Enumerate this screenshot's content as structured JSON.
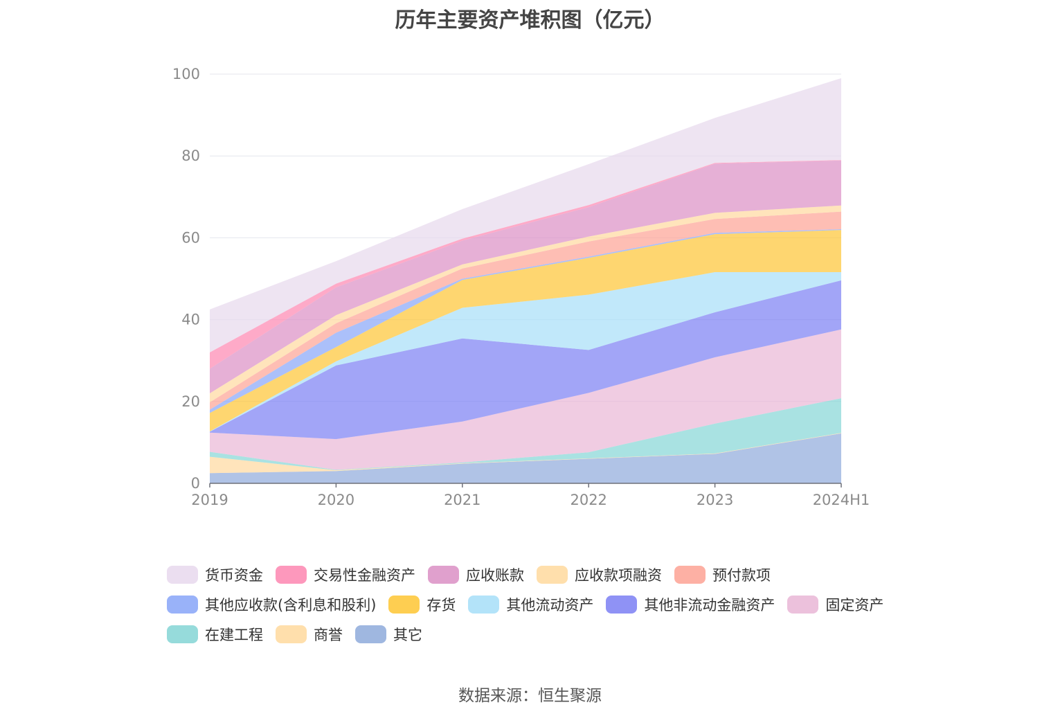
{
  "chart_data": {
    "type": "area",
    "stacked": true,
    "title": "历年主要资产堆积图（亿元）",
    "x": [
      "2019",
      "2020",
      "2021",
      "2022",
      "2023",
      "2024H1"
    ],
    "ylim": [
      0,
      100
    ],
    "yticks": [
      "0",
      "20",
      "40",
      "60",
      "80",
      "100"
    ],
    "grid": true,
    "legend_position": "bottom",
    "source": "数据来源：恒生聚源",
    "series": [
      {
        "name": "其它",
        "color": "#8eaadb",
        "values": [
          2.5,
          3.0,
          4.8,
          6.0,
          7.2,
          12.2
        ]
      },
      {
        "name": "商誉",
        "color": "#ffd99e",
        "values": [
          4.0,
          0.2,
          0.1,
          0.1,
          0.1,
          0.1
        ]
      },
      {
        "name": "在建工程",
        "color": "#84d5d5",
        "values": [
          1.2,
          0.1,
          0.2,
          1.5,
          7.3,
          8.5
        ]
      },
      {
        "name": "固定资产",
        "color": "#e9b6d6",
        "values": [
          4.7,
          7.5,
          10.0,
          14.5,
          16.2,
          16.8
        ]
      },
      {
        "name": "其他非流动金融资产",
        "color": "#7b7ff3",
        "values": [
          0.2,
          18.0,
          20.3,
          10.5,
          11.0,
          12.0
        ]
      },
      {
        "name": "其他流动资产",
        "color": "#a6def8",
        "values": [
          0.1,
          1.0,
          7.5,
          13.5,
          9.8,
          2.0
        ]
      },
      {
        "name": "存货",
        "color": "#fec533",
        "values": [
          4.5,
          3.5,
          6.8,
          9.0,
          9.3,
          10.3
        ]
      },
      {
        "name": "其他应收款(含利息和股利)",
        "color": "#87a5f8",
        "values": [
          0.8,
          3.5,
          0.3,
          0.3,
          0.3,
          0.2
        ]
      },
      {
        "name": "预付款项",
        "color": "#fda294",
        "values": [
          1.8,
          2.3,
          2.5,
          3.7,
          3.4,
          4.3
        ]
      },
      {
        "name": "应收款项融资",
        "color": "#ffd99e",
        "values": [
          2.2,
          2.0,
          1.0,
          1.2,
          1.5,
          1.5
        ]
      },
      {
        "name": "应收账款",
        "color": "#db8fc4",
        "values": [
          6.0,
          6.8,
          5.8,
          7.2,
          12.0,
          11.0
        ]
      },
      {
        "name": "交易性金融资产",
        "color": "#fd86b0",
        "values": [
          4.0,
          0.9,
          0.5,
          0.5,
          0.2,
          0.1
        ]
      },
      {
        "name": "货币资金",
        "color": "#e7d8ed",
        "values": [
          10.5,
          5.5,
          7.2,
          10.0,
          11.0,
          20.0
        ]
      }
    ]
  },
  "legend_rows": [
    [
      "货币资金",
      "交易性金融资产",
      "应收账款",
      "应收款项融资",
      "预付款项"
    ],
    [
      "其他应收款(含利息和股利)",
      "存货",
      "其他流动资产",
      "其他非流动金融资产",
      "固定资产"
    ],
    [
      "在建工程",
      "商誉",
      "其它"
    ]
  ]
}
